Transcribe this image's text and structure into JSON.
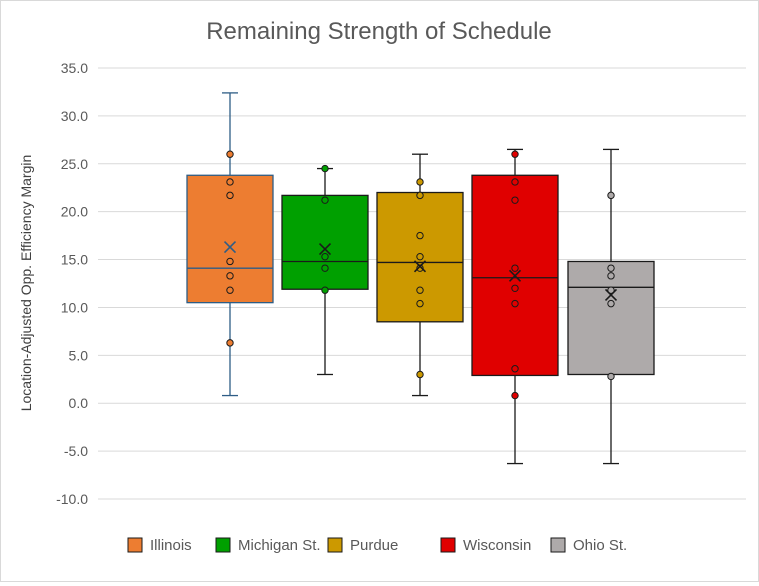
{
  "chart_data": {
    "type": "box",
    "title": "Remaining Strength of Schedule",
    "xlabel": "",
    "ylabel": "Location-Adjusted Opp. Efficiency Margin",
    "ylim": [
      -10,
      35
    ],
    "yticks": [
      "35.0",
      "30.0",
      "25.0",
      "20.0",
      "15.0",
      "10.0",
      "5.0",
      "0.0",
      "-5.0",
      "-10.0"
    ],
    "ytick_values": [
      35,
      30,
      25,
      20,
      15,
      10,
      5,
      0,
      -5,
      -10
    ],
    "grid": true,
    "legend_position": "bottom",
    "series": [
      {
        "name": "Illinois",
        "color": "#ED7D31",
        "stroke": "#2E5D86",
        "min": 0.8,
        "q1": 10.5,
        "median": 14.1,
        "q3": 23.8,
        "max": 32.4,
        "mean": 16.3,
        "points": [
          26.0,
          23.1,
          21.7,
          14.8,
          13.3,
          11.8,
          6.3
        ]
      },
      {
        "name": "Michigan St.",
        "color": "#00A000",
        "stroke": "#1a1a1a",
        "min": 3.0,
        "q1": 11.9,
        "median": 14.8,
        "q3": 21.7,
        "max": 24.5,
        "mean": 16.1,
        "points": [
          24.5,
          21.2,
          15.3,
          14.1,
          11.8
        ]
      },
      {
        "name": "Purdue",
        "color": "#CC9900",
        "stroke": "#1a1a1a",
        "min": 0.8,
        "q1": 8.5,
        "median": 14.7,
        "q3": 22.0,
        "max": 26.0,
        "mean": 14.3,
        "points": [
          23.1,
          21.7,
          17.5,
          15.3,
          14.1,
          11.8,
          10.4,
          3.0
        ]
      },
      {
        "name": "Wisconsin",
        "color": "#E00000",
        "stroke": "#1a1a1a",
        "min": -6.3,
        "q1": 2.9,
        "median": 13.1,
        "q3": 23.8,
        "max": 26.5,
        "mean": 13.3,
        "points": [
          26.0,
          23.1,
          21.2,
          14.1,
          12.0,
          10.4,
          3.6,
          0.8
        ]
      },
      {
        "name": "Ohio St.",
        "color": "#AEAAAA",
        "stroke": "#1a1a1a",
        "min": -6.3,
        "q1": 3.0,
        "median": 12.1,
        "q3": 14.8,
        "max": 26.5,
        "mean": 11.3,
        "points": [
          21.7,
          14.1,
          13.3,
          11.8,
          10.4,
          2.8
        ]
      }
    ]
  }
}
